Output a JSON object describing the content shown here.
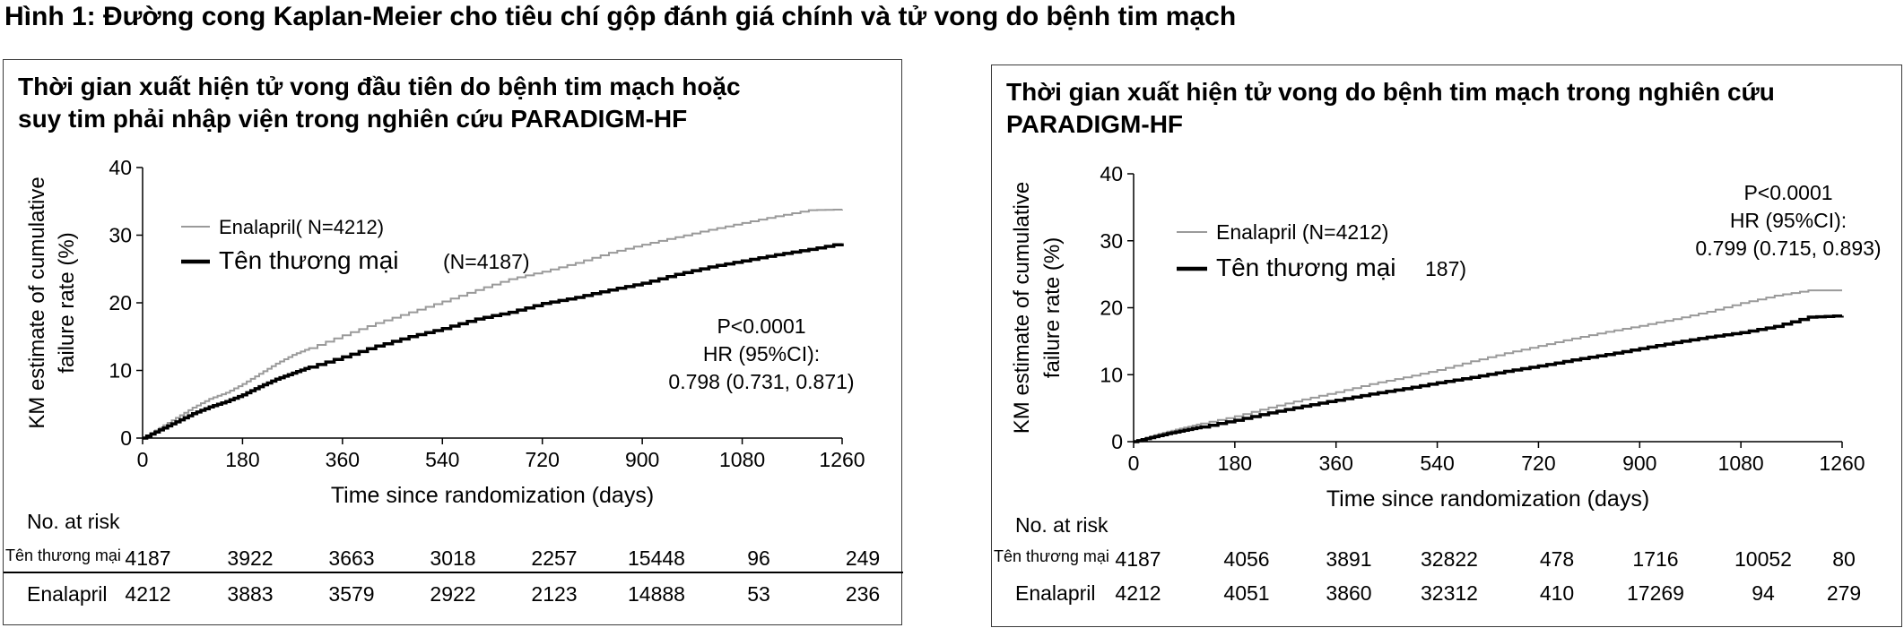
{
  "figure_title": "Hình 1:  Đường cong Kaplan-Meier cho tiêu chí gộp đánh giá chính và tử vong do bệnh tim mạch",
  "chart_data": [
    {
      "type": "line",
      "title": "Thời gian xuất hiện tử vong đầu tiên do bệnh tim mạch hoặc\nsuy tim phải nhập viện trong nghiên cứu PARADIGM-HF",
      "xlabel": "Time since randomization (days)",
      "ylabel": "KM estimate of cumulative failure rate (%)",
      "ylabel_lines": [
        "KM estimate of cumulative",
        "failure rate (%)"
      ],
      "xlim": [
        0,
        1260
      ],
      "ylim": [
        0,
        40
      ],
      "x_ticks": [
        0,
        180,
        360,
        540,
        720,
        900,
        1080,
        1260
      ],
      "y_ticks": [
        0,
        10,
        20,
        30,
        40
      ],
      "grid": false,
      "legend_position": "top-left",
      "stats_lines": [
        "P<0.0001",
        "HR (95%CI):",
        "0.798 (0.731, 0.871)"
      ],
      "series": [
        {
          "name": "Enalapril( N=4212)",
          "color": "#9a9a9a",
          "x": [
            0,
            30,
            60,
            90,
            120,
            150,
            180,
            210,
            240,
            270,
            300,
            360,
            420,
            480,
            540,
            600,
            660,
            720,
            780,
            840,
            900,
            960,
            1020,
            1080,
            1140,
            1200,
            1260
          ],
          "y": [
            0,
            1.5,
            3,
            4.5,
            5.8,
            6.7,
            8,
            9.5,
            11,
            12.3,
            13.3,
            15.2,
            17,
            18.6,
            20.2,
            21.9,
            23.5,
            24.6,
            25.9,
            27.4,
            28.6,
            29.7,
            30.8,
            31.8,
            32.8,
            33.7,
            33.8
          ]
        },
        {
          "name": "Tên thương mại",
          "name_suffix": "(N=4187)",
          "color": "#000000",
          "x": [
            0,
            30,
            60,
            90,
            120,
            150,
            180,
            210,
            240,
            270,
            300,
            360,
            420,
            480,
            540,
            600,
            660,
            720,
            780,
            840,
            900,
            960,
            1020,
            1080,
            1140,
            1200,
            1260
          ],
          "y": [
            0,
            1.2,
            2.4,
            3.6,
            4.6,
            5.4,
            6.4,
            7.6,
            8.7,
            9.6,
            10.5,
            12,
            13.6,
            15,
            16.2,
            17.6,
            18.6,
            19.9,
            20.8,
            21.9,
            22.9,
            24.2,
            25.3,
            26.2,
            27.1,
            27.9,
            28.8
          ]
        }
      ],
      "risk_table": {
        "header": "No. at risk",
        "rows": [
          {
            "label": "Tên thương mại",
            "values": [
              "4187",
              "3922",
              "3663",
              "3018",
              "2257",
              "15448",
              "96",
              "249"
            ]
          },
          {
            "label": "Enalapril",
            "values": [
              "4212",
              "3883",
              "3579",
              "2922",
              "2123",
              "14888",
              "53",
              "236"
            ]
          }
        ]
      }
    },
    {
      "type": "line",
      "title": "Thời gian xuất hiện tử vong do bệnh tim mạch trong nghiên cứu\nPARADIGM-HF",
      "xlabel": "Time since randomization (days)",
      "ylabel": "KM estimate of cumulative failure rate (%)",
      "ylabel_lines": [
        "KM estimate of cumulative",
        "failure rate (%)"
      ],
      "xlim": [
        0,
        1260
      ],
      "ylim": [
        0,
        40
      ],
      "x_ticks": [
        0,
        180,
        360,
        540,
        720,
        900,
        1080,
        1260
      ],
      "y_ticks": [
        0,
        10,
        20,
        30,
        40
      ],
      "grid": false,
      "legend_position": "top-left",
      "stats_lines": [
        "P<0.0001",
        "HR (95%CI):",
        "0.799 (0.715, 0.893)"
      ],
      "series": [
        {
          "name": "Enalapril (N=4212)",
          "color": "#9a9a9a",
          "x": [
            0,
            30,
            60,
            90,
            120,
            180,
            240,
            300,
            360,
            420,
            480,
            540,
            600,
            660,
            720,
            780,
            840,
            900,
            960,
            1020,
            1080,
            1140,
            1200,
            1260
          ],
          "y": [
            0,
            0.8,
            1.5,
            2.1,
            2.7,
            3.8,
            5.1,
            6.3,
            7.4,
            8.6,
            9.6,
            10.7,
            12,
            13.2,
            14.3,
            15.4,
            16.4,
            17.3,
            18.3,
            19.4,
            20.7,
            21.8,
            22.6,
            22.6
          ]
        },
        {
          "name": "Tên thương mại",
          "name_suffix": "187)",
          "color": "#000000",
          "x": [
            0,
            30,
            60,
            90,
            120,
            180,
            240,
            300,
            360,
            420,
            480,
            540,
            600,
            660,
            720,
            780,
            840,
            900,
            960,
            1020,
            1080,
            1140,
            1200,
            1260
          ],
          "y": [
            0,
            0.6,
            1.2,
            1.7,
            2.2,
            3.2,
            4.3,
            5.3,
            6.2,
            7.1,
            7.9,
            8.8,
            9.6,
            10.5,
            11.3,
            12.2,
            13,
            13.9,
            14.8,
            15.6,
            16.3,
            17.2,
            18.6,
            18.8
          ]
        }
      ],
      "risk_table": {
        "header": "No. at risk",
        "rows": [
          {
            "label": "Tên thương mại",
            "values": [
              "4187",
              "4056",
              "3891",
              "32822",
              "478",
              "1716",
              "10052",
              "80"
            ]
          },
          {
            "label": "Enalapril",
            "values": [
              "4212",
              "4051",
              "3860",
              "32312",
              "410",
              "17269",
              "94",
              "279"
            ]
          }
        ]
      }
    }
  ]
}
